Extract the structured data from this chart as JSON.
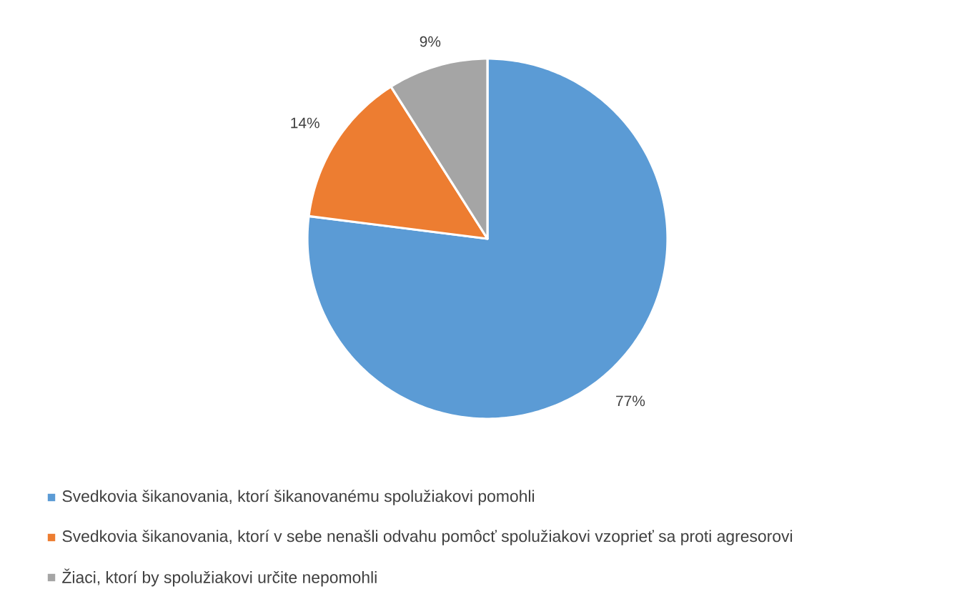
{
  "chart_data": {
    "type": "pie",
    "categories": [
      "Svedkovia šikanovania, ktorí šikanovanému spolužiakovi pomohli",
      "Svedkovia šikanovania, ktorí v sebe nenašli odvahu pomôcť spolužiakovi vzoprieť sa proti agresorovi",
      "Žiaci, ktorí by spolužiakovi určite nepomohli"
    ],
    "values": [
      77,
      14,
      9
    ],
    "value_labels": [
      "77%",
      "14%",
      "9%"
    ],
    "colors": [
      "#5b9bd5",
      "#ed7d31",
      "#a5a5a5"
    ],
    "legend": "bottom"
  }
}
